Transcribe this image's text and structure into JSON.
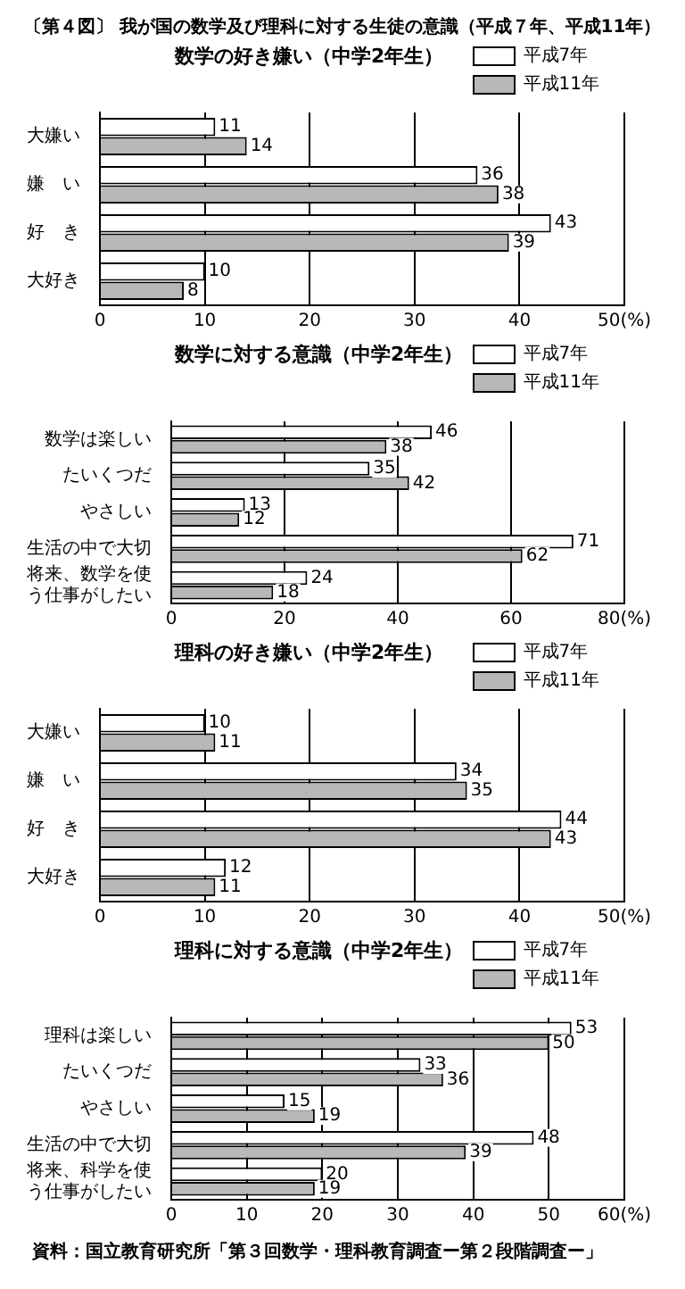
{
  "chart_data": [
    {
      "type": "bar",
      "orientation": "horizontal",
      "title": "〔第４図〕 我が国の数学及び理科に対する生徒の意識（平成７年、平成11年）",
      "subtitle": "数学の好き嫌い（中学2年生）",
      "categories": [
        "大嫌い",
        "嫌　い",
        "好　き",
        "大好き"
      ],
      "series": [
        {
          "name": "平成7年",
          "color": "#ffffff",
          "values": [
            11,
            36,
            43,
            10
          ]
        },
        {
          "name": "平成11年",
          "color": "#b8b8b8",
          "values": [
            14,
            38,
            39,
            8
          ]
        }
      ],
      "xlim": [
        0,
        50
      ],
      "xticks": [
        0,
        10,
        20,
        30,
        40,
        {
          "value": 50,
          "label": "50(%)"
        }
      ],
      "grid": "x",
      "legend": "top right",
      "data_labels": true
    },
    {
      "type": "bar",
      "orientation": "horizontal",
      "title": "数学に対する意識（中学2年生）",
      "categories": [
        "数学は楽しい",
        "たいくつだ",
        "やさしい",
        "生活の中で大切",
        "将来、数学を使う仕事がしたい"
      ],
      "series": [
        {
          "name": "平成7年",
          "color": "#ffffff",
          "values": [
            46,
            35,
            13,
            71,
            24
          ]
        },
        {
          "name": "平成11年",
          "color": "#b8b8b8",
          "values": [
            38,
            42,
            12,
            62,
            18
          ]
        }
      ],
      "xlim": [
        0,
        80
      ],
      "xticks": [
        0,
        20,
        40,
        60,
        {
          "value": 80,
          "label": "80(%)"
        }
      ],
      "grid": "x",
      "legend": "top right",
      "data_labels": true
    },
    {
      "type": "bar",
      "orientation": "horizontal",
      "title": "理科の好き嫌い（中学2年生）",
      "categories": [
        "大嫌い",
        "嫌　い",
        "好　き",
        "大好き"
      ],
      "series": [
        {
          "name": "平成7年",
          "color": "#ffffff",
          "values": [
            10,
            34,
            44,
            12
          ]
        },
        {
          "name": "平成11年",
          "color": "#b8b8b8",
          "values": [
            11,
            35,
            43,
            11
          ]
        }
      ],
      "xlim": [
        0,
        50
      ],
      "xticks": [
        0,
        10,
        20,
        30,
        40,
        {
          "value": 50,
          "label": "50(%)"
        }
      ],
      "grid": "x",
      "legend": "top right",
      "data_labels": true
    },
    {
      "type": "bar",
      "orientation": "horizontal",
      "title": "理科に対する意識（中学2年生）",
      "categories": [
        "理科は楽しい",
        "たいくつだ",
        "やさしい",
        "生活の中で大切",
        "将来、科学を使う仕事がしたい"
      ],
      "series": [
        {
          "name": "平成7年",
          "color": "#ffffff",
          "values": [
            53,
            33,
            15,
            48,
            20
          ]
        },
        {
          "name": "平成11年",
          "color": "#b8b8b8",
          "values": [
            50,
            36,
            19,
            39,
            19
          ]
        }
      ],
      "xlim": [
        0,
        60
      ],
      "xticks": [
        0,
        10,
        20,
        30,
        40,
        50,
        {
          "value": 60,
          "label": "60(%)"
        }
      ],
      "grid": "x",
      "legend": "top right",
      "data_labels": true,
      "annotations": [
        "資料：国立教育研究所「第３回数学・理科教育調査ー第２段階調査ー」"
      ]
    }
  ]
}
